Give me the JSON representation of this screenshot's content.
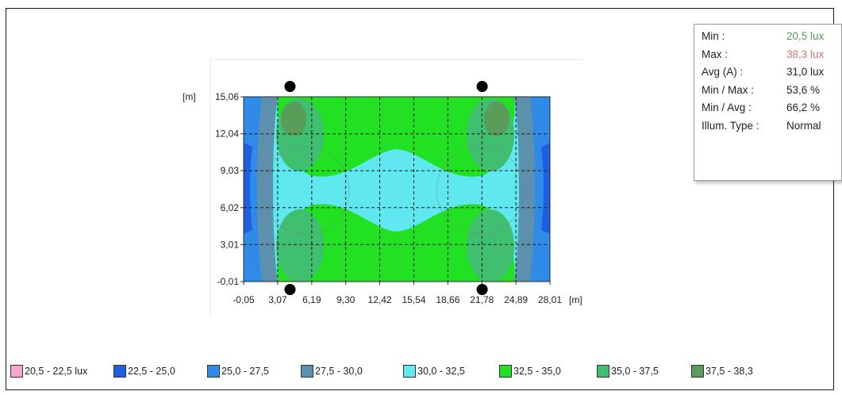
{
  "stats": {
    "rows": [
      {
        "label": "Min :",
        "value": "20,5 lux",
        "color": "#4e9a5a"
      },
      {
        "label": "Max :",
        "value": "38,3 lux",
        "color": "#d9706f"
      },
      {
        "label": "Avg (A) :",
        "value": "31,0 lux",
        "color": "#1f1f1f"
      },
      {
        "label": "Min / Max :",
        "value": "53,6 %",
        "color": "#1f1f1f"
      },
      {
        "label": "Min / Avg :",
        "value": "66,2 %",
        "color": "#1f1f1f"
      },
      {
        "label": "Illum. Type :",
        "value": "Normal",
        "color": "#1f1f1f"
      }
    ]
  },
  "legend": {
    "items": [
      {
        "label": "20,5 - 22,5 lux",
        "color": "#f6a6d0"
      },
      {
        "label": "22,5 - 25,0",
        "color": "#1f5fe0"
      },
      {
        "label": "25,0 - 27,5",
        "color": "#2e8be8"
      },
      {
        "label": "27,5 - 30,0",
        "color": "#5c90ac"
      },
      {
        "label": "30,0 - 32,5",
        "color": "#5fe8f0"
      },
      {
        "label": "32,5 - 35,0",
        "color": "#22e022"
      },
      {
        "label": "35,0 - 37,5",
        "color": "#3fbf6f"
      },
      {
        "label": "37,5 - 38,3",
        "color": "#5a9c5a"
      }
    ]
  },
  "chart_data": {
    "type": "heatmap",
    "title": "",
    "x_unit_label": "[m]",
    "y_unit_label": "[m]",
    "x_ticks": [
      "-0,05",
      "3,07",
      "6,19",
      "9,30",
      "12,42",
      "15,54",
      "18,66",
      "21,78",
      "24,89",
      "28,01"
    ],
    "y_ticks": [
      "-0,01",
      "3,01",
      "6,02",
      "9,03",
      "12,04",
      "15,06"
    ],
    "xlim": [
      -0.05,
      28.01
    ],
    "ylim": [
      -0.01,
      15.06
    ],
    "grid": true,
    "luminaires": [
      {
        "x": 4.2,
        "y": 15.06
      },
      {
        "x": 21.8,
        "y": 15.06
      },
      {
        "x": 4.2,
        "y": -0.01
      },
      {
        "x": 21.8,
        "y": -0.01
      }
    ]
  }
}
